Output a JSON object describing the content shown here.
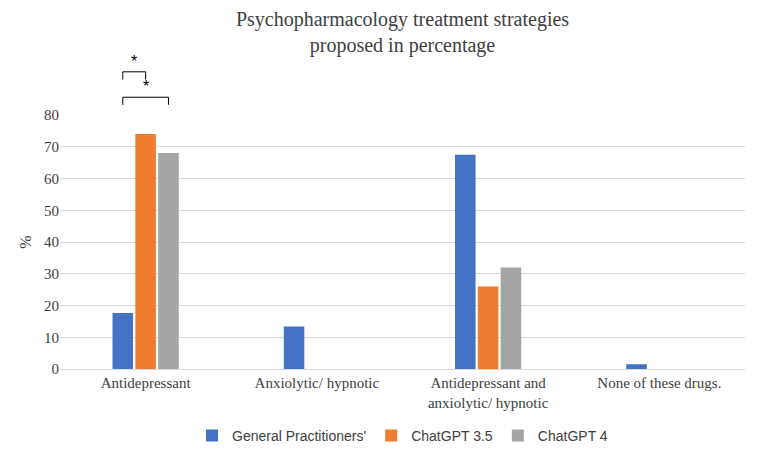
{
  "chart_data": {
    "type": "bar",
    "title": "Psychopharmacology treatment strategies proposed in percentage",
    "y_label": "%",
    "categories": [
      "Antidepressant",
      "Anxiolytic/ hypnotic",
      "Antidepressant and anxiolytic/ hypnotic",
      "None of these drugs."
    ],
    "series": [
      {
        "name": "General Practitioners'",
        "color": "#4472c4",
        "values": [
          17.6,
          13.4,
          67.5,
          1.5
        ]
      },
      {
        "name": "ChatGPT 3.5",
        "color": "#ed7d31",
        "values": [
          74,
          0,
          26,
          0
        ]
      },
      {
        "name": "ChatGPT 4",
        "color": "#a5a5a5",
        "values": [
          68,
          0,
          32,
          0
        ]
      }
    ],
    "ylim": [
      0,
      80
    ],
    "yticks": [
      0,
      10,
      20,
      30,
      40,
      50,
      60,
      70,
      80
    ],
    "grid": true,
    "legend": "bottom",
    "annotations": [
      {
        "text": "*",
        "category": "Antidepressant",
        "from": "General Practitioners'",
        "to": "ChatGPT 3.5"
      },
      {
        "text": "*",
        "category": "Antidepressant",
        "from": "General Practitioners'",
        "to": "ChatGPT 4"
      }
    ]
  }
}
